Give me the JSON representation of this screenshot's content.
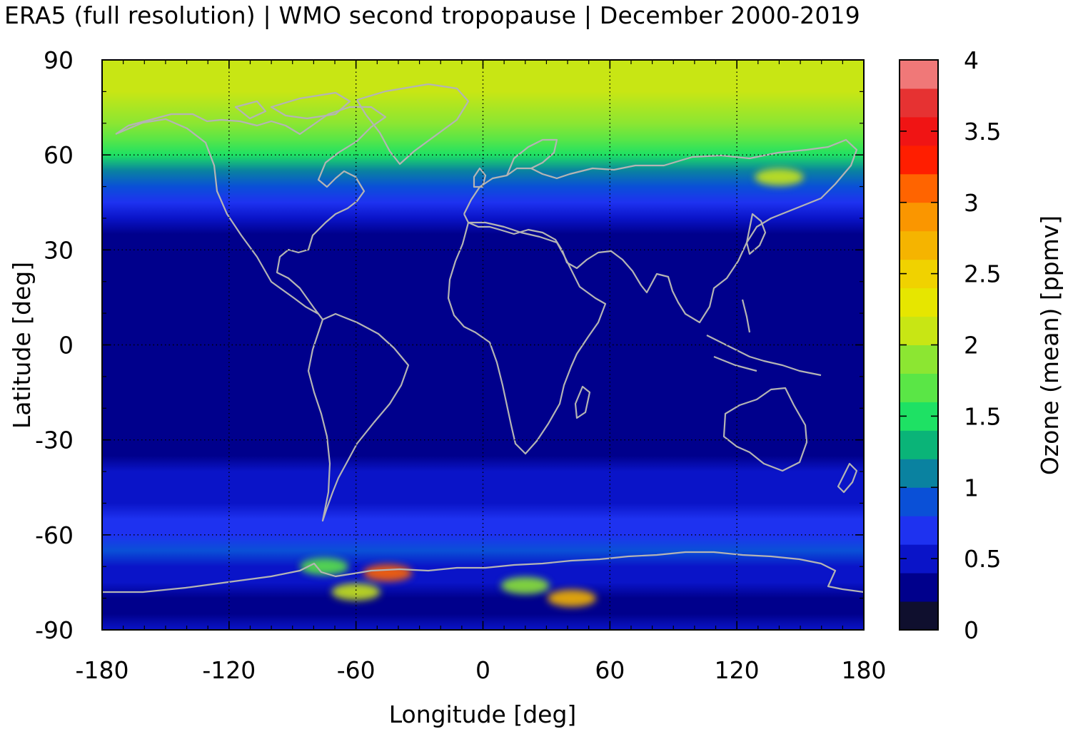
{
  "chart_data": {
    "type": "heatmap",
    "title": "ERA5 (full resolution) | WMO second tropopause | December 2000-2019",
    "xlabel": "Longitude [deg]",
    "ylabel": "Latitude [deg]",
    "xlim": [
      -180,
      180
    ],
    "ylim": [
      -90,
      90
    ],
    "x_ticks": [
      -180,
      -120,
      -60,
      0,
      60,
      120,
      180
    ],
    "y_ticks": [
      90,
      60,
      30,
      0,
      -30,
      -60,
      -90
    ],
    "x_tick_labels": [
      "-180",
      "-120",
      "-60",
      "0",
      "60",
      "120",
      "180"
    ],
    "y_tick_labels": [
      "90",
      "60",
      "30",
      "0",
      "-30",
      "-60",
      "-90"
    ],
    "grid": "dotted",
    "colorbar": {
      "label": "Ozone (mean) [ppmv]",
      "min": 0,
      "max": 4,
      "step": 0.2,
      "ticks": [
        0,
        0.5,
        1,
        1.5,
        2,
        2.5,
        3,
        3.5,
        4
      ],
      "tick_labels": [
        "0",
        "0.5",
        "1",
        "1.5",
        "2",
        "2.5",
        "3",
        "3.5",
        "4"
      ],
      "colors": [
        "#0f0f2e",
        "#00008c",
        "#0a14c8",
        "#1e32f0",
        "#0a50d7",
        "#0a82a0",
        "#0ab478",
        "#1ee164",
        "#5ae646",
        "#8ce632",
        "#c8e614",
        "#e6e600",
        "#f0d200",
        "#f5b400",
        "#fa9600",
        "#ff6400",
        "#ff1e00",
        "#f01414",
        "#e63232",
        "#f07878",
        "#ffcccc"
      ]
    },
    "zonal_mean_ozone": {
      "lat": [
        90,
        80,
        70,
        65,
        60,
        55,
        50,
        45,
        40,
        35,
        30,
        0,
        -30,
        -35,
        -40,
        -45,
        -50,
        -55,
        -60,
        -65,
        -70,
        -75,
        -80,
        -85,
        -90
      ],
      "value": [
        2.15,
        2.05,
        1.9,
        1.7,
        1.45,
        1.2,
        0.95,
        0.7,
        0.5,
        0.35,
        0.3,
        0.3,
        0.3,
        0.3,
        0.45,
        0.45,
        0.6,
        0.7,
        0.75,
        0.9,
        0.6,
        0.4,
        0.35,
        0.35,
        0.4
      ]
    },
    "regional_features": [
      {
        "lon": 140,
        "lat": 53,
        "value": 2.1
      },
      {
        "lon": -45,
        "lat": -72,
        "value": 3.1
      },
      {
        "lon": -75,
        "lat": -70,
        "value": 1.6
      },
      {
        "lon": 42,
        "lat": -80,
        "value": 2.8
      },
      {
        "lon": -60,
        "lat": -78,
        "value": 2.0
      },
      {
        "lon": 20,
        "lat": -76,
        "value": 1.8
      }
    ]
  }
}
